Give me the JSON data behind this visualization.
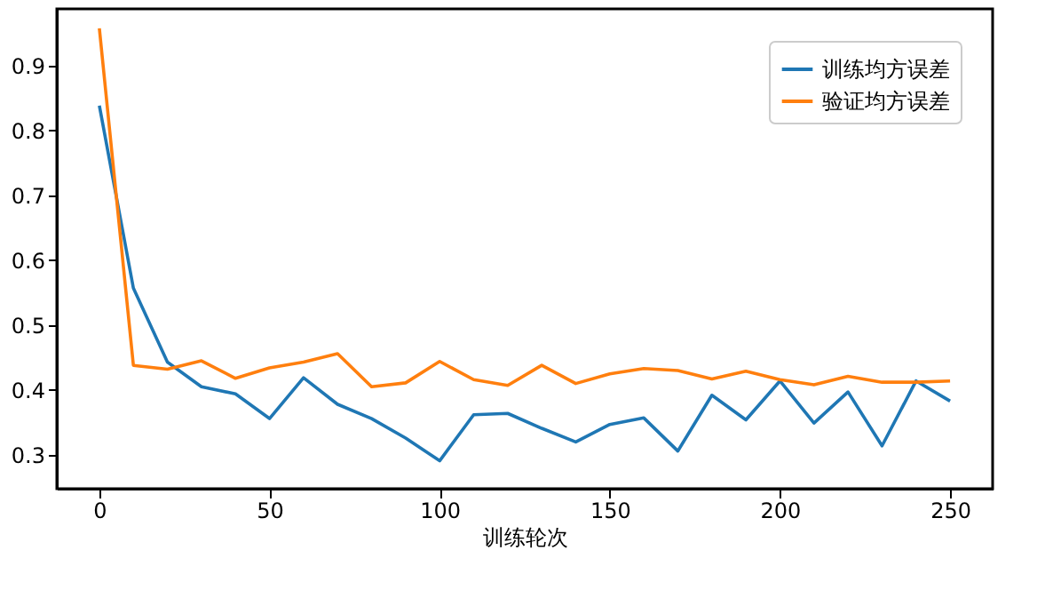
{
  "chart_data": {
    "type": "line",
    "xlabel": "训练轮次",
    "x": [
      0,
      10,
      20,
      30,
      40,
      50,
      60,
      70,
      80,
      90,
      100,
      110,
      120,
      130,
      140,
      150,
      160,
      170,
      180,
      190,
      200,
      210,
      220,
      230,
      240,
      250
    ],
    "series": [
      {
        "name": "训练均方误差",
        "color": "#1f77b4",
        "values": [
          0.838,
          0.557,
          0.443,
          0.405,
          0.394,
          0.356,
          0.419,
          0.378,
          0.356,
          0.326,
          0.291,
          0.362,
          0.364,
          0.341,
          0.32,
          0.347,
          0.357,
          0.306,
          0.392,
          0.354,
          0.414,
          0.349,
          0.397,
          0.314,
          0.414,
          0.383
        ]
      },
      {
        "name": "验证均方误差",
        "color": "#ff7f0e",
        "values": [
          0.957,
          0.438,
          0.432,
          0.445,
          0.418,
          0.434,
          0.443,
          0.456,
          0.405,
          0.411,
          0.444,
          0.416,
          0.407,
          0.438,
          0.41,
          0.425,
          0.433,
          0.43,
          0.417,
          0.429,
          0.416,
          0.408,
          0.421,
          0.412,
          0.412,
          0.414
        ]
      }
    ],
    "xlim": [
      -12.5,
      262.5
    ],
    "xticks": [
      0,
      50,
      100,
      150,
      200,
      250
    ],
    "ylim": [
      0.248,
      0.987
    ],
    "yticks": [
      0.3,
      0.4,
      0.5,
      0.6,
      0.7,
      0.8,
      0.9
    ],
    "grid": false,
    "legend": "top right",
    "marker": "none",
    "line_style": "solid"
  }
}
